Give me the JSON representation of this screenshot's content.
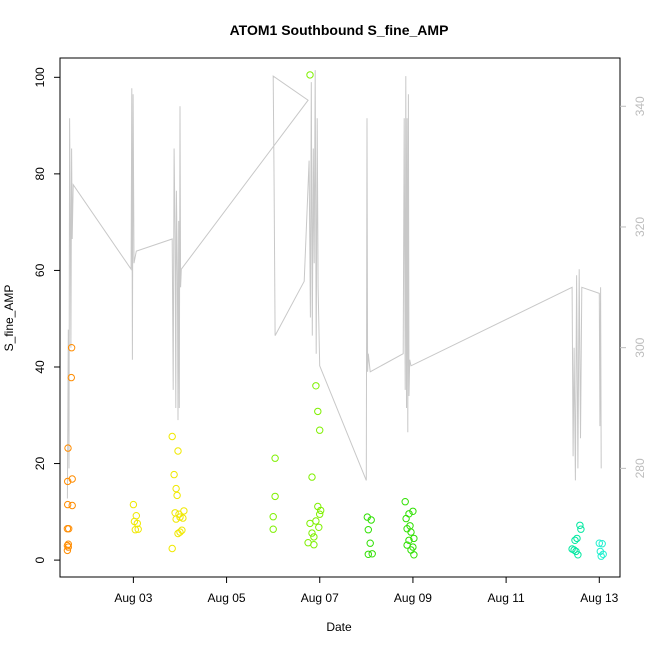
{
  "chart_data": {
    "type": "scatter",
    "title": "ATOM1 Southbound S_fine_AMP",
    "xlabel": "Date",
    "ylabel": "S_fine_AMP",
    "x_axis_type": "date",
    "xlim": [
      "2024-08-01T10:12",
      "2024-08-13T10:40"
    ],
    "ylim": [
      -3.5,
      104
    ],
    "y2lim": [
      262,
      348
    ],
    "x_ticks": [
      {
        "date": "2024-08-03",
        "label": "Aug 03"
      },
      {
        "date": "2024-08-05",
        "label": "Aug 05"
      },
      {
        "date": "2024-08-07",
        "label": "Aug 07"
      },
      {
        "date": "2024-08-09",
        "label": "Aug 09"
      },
      {
        "date": "2024-08-11",
        "label": "Aug 11"
      },
      {
        "date": "2024-08-13",
        "label": "Aug 13"
      }
    ],
    "y_ticks": [
      0,
      20,
      40,
      60,
      80,
      100
    ],
    "y2_ticks": [
      280,
      300,
      320,
      340
    ],
    "grid": false,
    "point_series": [
      {
        "color": "#ff8c00",
        "points": [
          [
            "2024-08-01T14:00",
            2
          ],
          [
            "2024-08-01T14:00",
            3
          ],
          [
            "2024-08-01T14:00",
            6.5
          ],
          [
            "2024-08-01T14:10",
            11.5
          ],
          [
            "2024-08-01T14:10",
            16.3
          ],
          [
            "2024-08-01T14:20",
            23.2
          ],
          [
            "2024-08-01T14:30",
            2.7
          ],
          [
            "2024-08-01T14:30",
            3.3
          ],
          [
            "2024-08-01T14:40",
            6.5
          ],
          [
            "2024-08-01T16:00",
            37.8
          ],
          [
            "2024-08-01T16:10",
            44
          ],
          [
            "2024-08-01T16:30",
            16.8
          ],
          [
            "2024-08-01T16:30",
            11.3
          ]
        ]
      },
      {
        "color": "#f0e800",
        "points": [
          [
            "2024-08-03T00:00",
            11.5
          ],
          [
            "2024-08-03T00:30",
            8
          ],
          [
            "2024-08-03T01:00",
            6.3
          ],
          [
            "2024-08-03T01:30",
            9.2
          ],
          [
            "2024-08-03T02:00",
            7.6
          ],
          [
            "2024-08-03T02:30",
            6.4
          ],
          [
            "2024-08-03T20:00",
            25.6
          ],
          [
            "2024-08-03T20:00",
            2.4
          ],
          [
            "2024-08-03T21:00",
            17.7
          ],
          [
            "2024-08-03T21:30",
            9.8
          ],
          [
            "2024-08-03T22:00",
            14.8
          ],
          [
            "2024-08-03T22:00",
            8.5
          ],
          [
            "2024-08-03T22:30",
            13.4
          ],
          [
            "2024-08-03T23:00",
            22.6
          ],
          [
            "2024-08-03T23:00",
            5.5
          ],
          [
            "2024-08-03T23:30",
            9.5
          ],
          [
            "2024-08-04T00:00",
            8.9
          ],
          [
            "2024-08-04T00:00",
            5.8
          ],
          [
            "2024-08-04T01:00",
            6.2
          ],
          [
            "2024-08-04T01:30",
            8.7
          ],
          [
            "2024-08-04T02:00",
            10.2
          ]
        ]
      },
      {
        "color": "#7ff000",
        "points": [
          [
            "2024-08-06T00:00",
            9
          ],
          [
            "2024-08-06T00:00",
            6.4
          ],
          [
            "2024-08-06T01:00",
            13.2
          ],
          [
            "2024-08-06T01:00",
            21.1
          ],
          [
            "2024-08-06T19:00",
            100.5
          ],
          [
            "2024-08-06T18:00",
            3.6
          ],
          [
            "2024-08-06T19:00",
            7.6
          ],
          [
            "2024-08-06T20:00",
            5.6
          ],
          [
            "2024-08-06T20:00",
            17.2
          ],
          [
            "2024-08-06T21:00",
            4.8
          ],
          [
            "2024-08-06T21:00",
            3.2
          ],
          [
            "2024-08-06T22:00",
            8.1
          ],
          [
            "2024-08-06T22:00",
            36.1
          ],
          [
            "2024-08-06T23:00",
            30.8
          ],
          [
            "2024-08-06T23:00",
            11.1
          ],
          [
            "2024-08-07T00:00",
            26.9
          ],
          [
            "2024-08-07T00:00",
            9.5
          ],
          [
            "2024-08-07T00:30",
            10.3
          ],
          [
            "2024-08-06T23:30",
            6.8
          ]
        ]
      },
      {
        "color": "#2ee000",
        "points": [
          [
            "2024-08-08T00:30",
            8.9
          ],
          [
            "2024-08-08T01:00",
            6.3
          ],
          [
            "2024-08-08T01:00",
            1.2
          ],
          [
            "2024-08-08T02:00",
            3.5
          ],
          [
            "2024-08-08T02:30",
            8.3
          ],
          [
            "2024-08-08T03:00",
            1.3
          ],
          [
            "2024-08-08T20:00",
            12.1
          ],
          [
            "2024-08-08T20:30",
            8.6
          ],
          [
            "2024-08-08T21:00",
            3.1
          ],
          [
            "2024-08-08T21:00",
            6.5
          ],
          [
            "2024-08-08T22:00",
            9.6
          ],
          [
            "2024-08-08T22:00",
            4.1
          ],
          [
            "2024-08-08T22:30",
            7.1
          ],
          [
            "2024-08-08T23:00",
            2.1
          ],
          [
            "2024-08-08T23:00",
            5.8
          ],
          [
            "2024-08-09T00:00",
            10.1
          ],
          [
            "2024-08-09T00:00",
            2.7
          ],
          [
            "2024-08-09T00:30",
            4.5
          ],
          [
            "2024-08-09T00:30",
            1.1
          ]
        ]
      },
      {
        "color": "#00e8a0",
        "points": [
          [
            "2024-08-12T10:00",
            2.3
          ],
          [
            "2024-08-12T11:00",
            2.1
          ],
          [
            "2024-08-12T11:30",
            4.1
          ],
          [
            "2024-08-12T12:00",
            1.8
          ],
          [
            "2024-08-12T12:30",
            4.5
          ],
          [
            "2024-08-12T13:00",
            1.1
          ],
          [
            "2024-08-12T14:00",
            7.2
          ],
          [
            "2024-08-12T14:30",
            6.4
          ]
        ]
      },
      {
        "color": "#20f0d0",
        "points": [
          [
            "2024-08-13T00:00",
            3.5
          ],
          [
            "2024-08-13T00:30",
            1.8
          ],
          [
            "2024-08-13T01:00",
            0.8
          ],
          [
            "2024-08-13T01:30",
            3.4
          ],
          [
            "2024-08-13T02:00",
            1.2
          ]
        ]
      }
    ],
    "line_series": {
      "color": "#c8c8c8",
      "axis": "right",
      "points": [
        [
          "2024-08-01T14:00",
          275
        ],
        [
          "2024-08-01T14:30",
          303
        ],
        [
          "2024-08-01T14:50",
          280
        ],
        [
          "2024-08-01T15:10",
          338
        ],
        [
          "2024-08-01T15:30",
          323
        ],
        [
          "2024-08-01T15:50",
          300
        ],
        [
          "2024-08-01T16:10",
          333
        ],
        [
          "2024-08-01T16:30",
          318
        ],
        [
          "2024-08-01T17:00",
          327
        ],
        [
          "2024-08-02T22:50",
          313
        ],
        [
          "2024-08-02T23:10",
          343
        ],
        [
          "2024-08-02T23:30",
          298
        ],
        [
          "2024-08-02T23:50",
          342
        ],
        [
          "2024-08-03T00:20",
          314
        ],
        [
          "2024-08-03T01:30",
          316
        ],
        [
          "2024-08-03T20:00",
          318
        ],
        [
          "2024-08-03T20:30",
          293
        ],
        [
          "2024-08-03T21:00",
          333
        ],
        [
          "2024-08-03T21:30",
          318
        ],
        [
          "2024-08-03T21:50",
          290
        ],
        [
          "2024-08-03T22:10",
          326
        ],
        [
          "2024-08-03T22:40",
          312
        ],
        [
          "2024-08-03T23:00",
          288
        ],
        [
          "2024-08-03T23:20",
          321
        ],
        [
          "2024-08-03T23:40",
          290
        ],
        [
          "2024-08-04T00:00",
          340
        ],
        [
          "2024-08-04T00:20",
          310
        ],
        [
          "2024-08-04T00:40",
          313
        ],
        [
          "2024-08-06T18:00",
          341
        ],
        [
          "2024-08-06T00:00",
          345
        ],
        [
          "2024-08-06T00:30",
          327
        ],
        [
          "2024-08-06T01:00",
          302
        ],
        [
          "2024-08-06T16:00",
          311
        ],
        [
          "2024-08-06T18:30",
          331
        ],
        [
          "2024-08-06T19:10",
          305
        ],
        [
          "2024-08-06T19:40",
          344
        ],
        [
          "2024-08-06T20:10",
          302
        ],
        [
          "2024-08-06T20:40",
          333
        ],
        [
          "2024-08-06T21:10",
          314
        ],
        [
          "2024-08-06T21:40",
          346
        ],
        [
          "2024-08-06T22:10",
          299
        ],
        [
          "2024-08-06T22:40",
          338
        ],
        [
          "2024-08-06T23:10",
          310
        ],
        [
          "2024-08-07T00:00",
          297
        ],
        [
          "2024-08-08T00:00",
          278
        ],
        [
          "2024-08-08T00:20",
          338
        ],
        [
          "2024-08-08T00:40",
          296
        ],
        [
          "2024-08-08T01:00",
          299
        ],
        [
          "2024-08-08T02:00",
          296
        ],
        [
          "2024-08-08T19:00",
          299
        ],
        [
          "2024-08-08T19:30",
          338
        ],
        [
          "2024-08-08T20:00",
          293
        ],
        [
          "2024-08-08T20:20",
          345
        ],
        [
          "2024-08-08T20:40",
          290
        ],
        [
          "2024-08-08T21:00",
          338
        ],
        [
          "2024-08-08T21:20",
          286
        ],
        [
          "2024-08-08T21:40",
          342
        ],
        [
          "2024-08-08T22:00",
          292
        ],
        [
          "2024-08-08T22:20",
          298
        ],
        [
          "2024-08-08T23:00",
          297
        ],
        [
          "2024-08-12T10:00",
          310
        ],
        [
          "2024-08-12T10:30",
          282
        ],
        [
          "2024-08-12T11:00",
          300
        ],
        [
          "2024-08-12T11:40",
          278
        ],
        [
          "2024-08-12T12:20",
          312
        ],
        [
          "2024-08-12T13:00",
          280
        ],
        [
          "2024-08-12T13:40",
          313
        ],
        [
          "2024-08-12T14:20",
          285
        ],
        [
          "2024-08-12T15:00",
          310
        ],
        [
          "2024-08-13T00:00",
          309
        ],
        [
          "2024-08-13T00:20",
          287
        ],
        [
          "2024-08-13T00:40",
          310
        ],
        [
          "2024-08-13T01:00",
          280
        ]
      ]
    }
  }
}
